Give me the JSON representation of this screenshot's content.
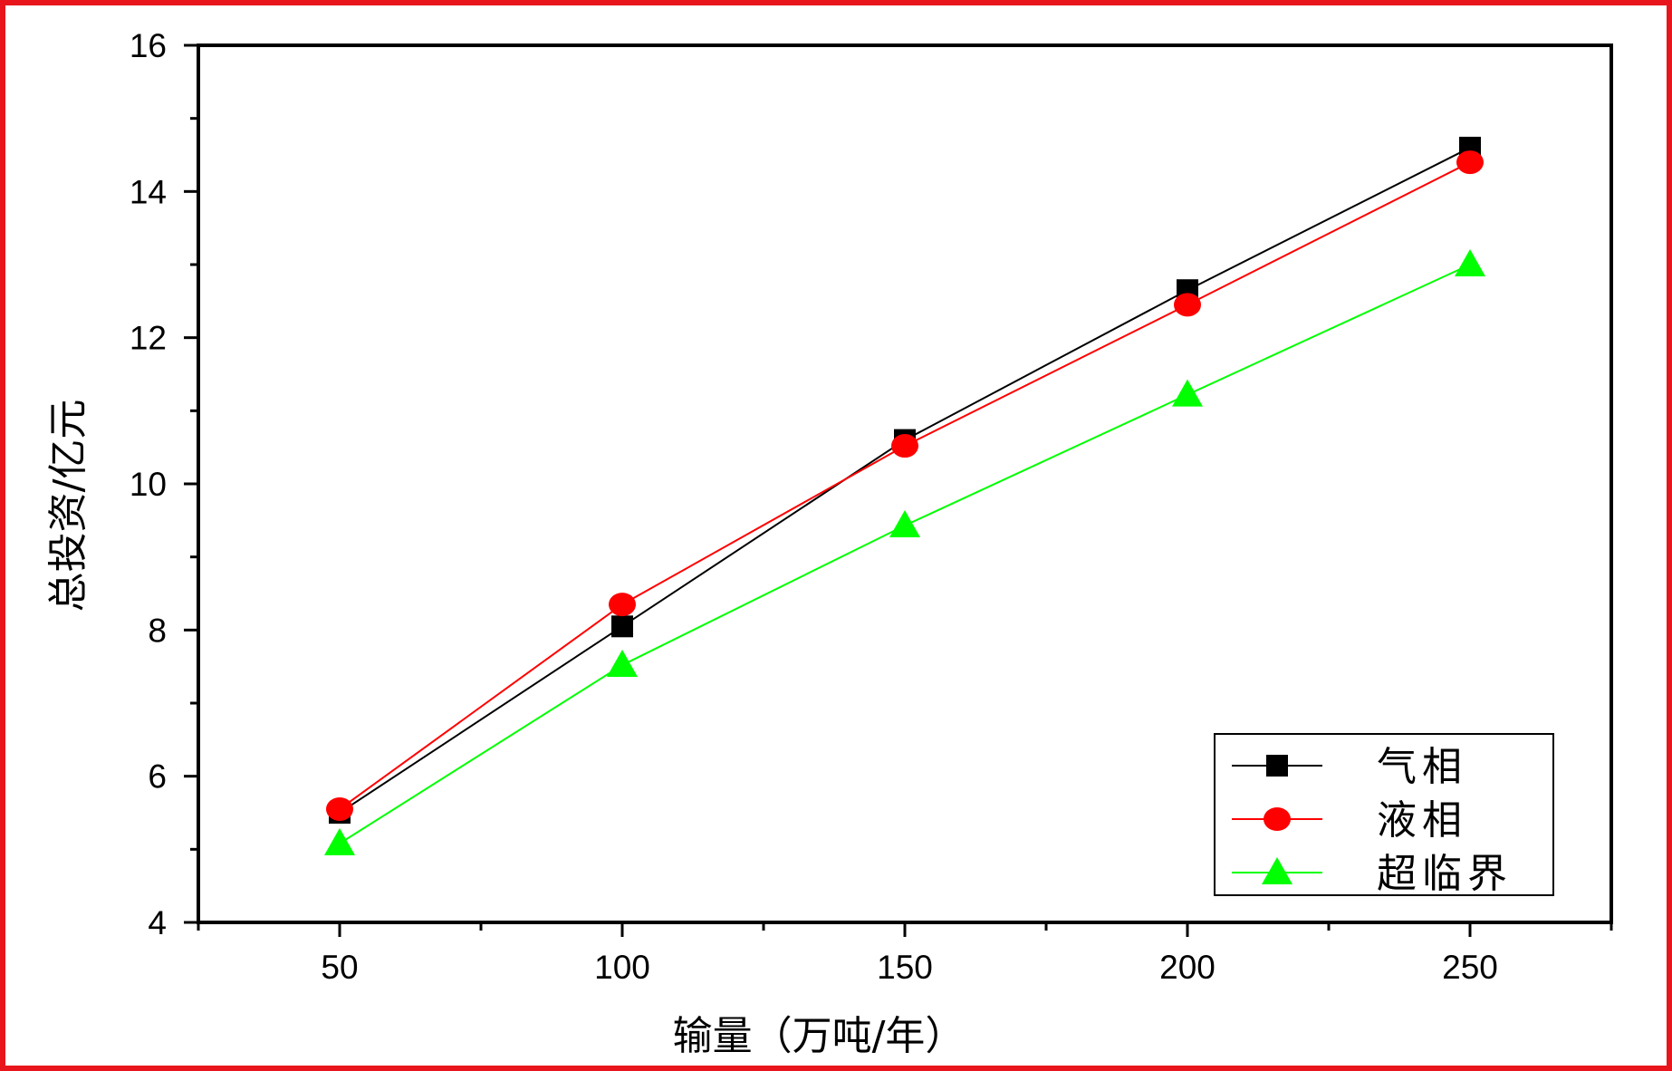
{
  "colors": {
    "frame": "#e8161c",
    "axis": "#000000"
  },
  "chart_data": {
    "type": "line",
    "title": "",
    "xlabel": "输量（万吨/年）",
    "ylabel": "总投资/亿元",
    "xlim": [
      25,
      275
    ],
    "ylim": [
      4,
      16
    ],
    "x_ticks": [
      50,
      100,
      150,
      200,
      250
    ],
    "y_ticks": [
      4,
      6,
      8,
      10,
      12,
      14,
      16
    ],
    "grid": false,
    "legend_position": "bottom-right",
    "x": [
      50,
      100,
      150,
      200,
      250
    ],
    "series": [
      {
        "name": "气相",
        "color": "#000000",
        "marker": "square",
        "values": [
          5.5,
          8.05,
          10.6,
          12.65,
          14.6
        ]
      },
      {
        "name": "液相",
        "color": "#ff0000",
        "marker": "circle",
        "values": [
          5.55,
          8.35,
          10.52,
          12.45,
          14.4
        ]
      },
      {
        "name": "超临界",
        "color": "#00ff00",
        "marker": "triangle",
        "values": [
          5.08,
          7.52,
          9.43,
          11.22,
          13.0
        ]
      }
    ]
  }
}
